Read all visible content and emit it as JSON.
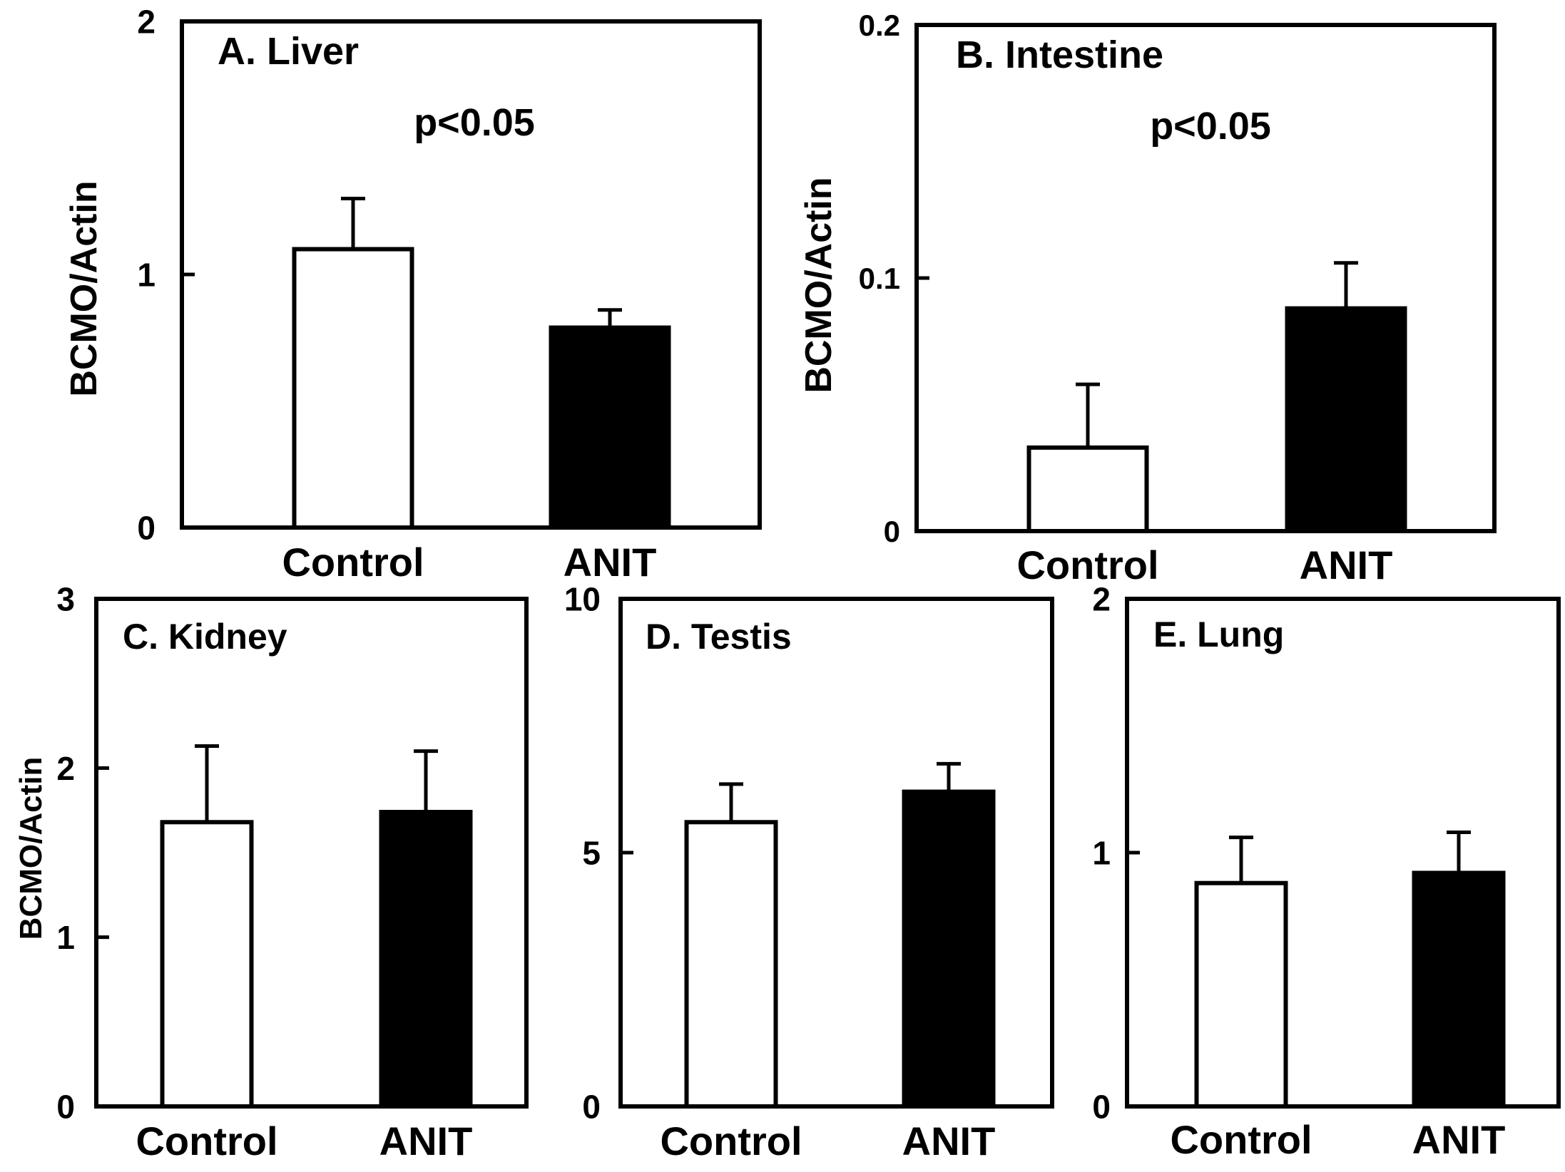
{
  "chart_data": [
    {
      "type": "bar",
      "panel": "A",
      "title": "A. Liver",
      "annotation": "p<0.05",
      "ylabel": "BCMO/Actin",
      "xlabel": "",
      "categories": [
        "Control",
        "ANIT"
      ],
      "values": [
        1.1,
        0.79
      ],
      "errors": [
        0.2,
        0.07
      ],
      "ylim": [
        0,
        2
      ],
      "yticks": [
        0,
        1,
        2
      ],
      "ytick_labels": [
        "0",
        "1",
        "2"
      ],
      "fills": [
        "#ffffff",
        "#000000"
      ]
    },
    {
      "type": "bar",
      "panel": "B",
      "title": "B. Intestine",
      "annotation": "p<0.05",
      "ylabel": "BCMO/Actin",
      "xlabel": "",
      "categories": [
        "Control",
        "ANIT"
      ],
      "values": [
        0.033,
        0.088
      ],
      "errors": [
        0.025,
        0.018
      ],
      "ylim": [
        0,
        0.2
      ],
      "yticks": [
        0,
        0.1,
        0.2
      ],
      "ytick_labels": [
        "0",
        "0.1",
        "0.2"
      ],
      "fills": [
        "#ffffff",
        "#000000"
      ]
    },
    {
      "type": "bar",
      "panel": "C",
      "title": "C. Kidney",
      "annotation": "",
      "ylabel": "BCMO/Actin",
      "xlabel": "",
      "categories": [
        "Control",
        "ANIT"
      ],
      "values": [
        1.68,
        1.74
      ],
      "errors": [
        0.45,
        0.36
      ],
      "ylim": [
        0,
        3
      ],
      "yticks": [
        0,
        1,
        2,
        3
      ],
      "ytick_labels": [
        "0",
        "1",
        "2",
        "3"
      ],
      "fills": [
        "#ffffff",
        "#000000"
      ]
    },
    {
      "type": "bar",
      "panel": "D",
      "title": "D. Testis",
      "annotation": "",
      "ylabel": "",
      "xlabel": "",
      "categories": [
        "Control",
        "ANIT"
      ],
      "values": [
        5.6,
        6.2
      ],
      "errors": [
        0.75,
        0.55
      ],
      "ylim": [
        0,
        10
      ],
      "yticks": [
        0,
        5,
        10
      ],
      "ytick_labels": [
        "0",
        "5",
        "10"
      ],
      "fills": [
        "#ffffff",
        "#000000"
      ]
    },
    {
      "type": "bar",
      "panel": "E",
      "title": "E. Lung",
      "annotation": "",
      "ylabel": "",
      "xlabel": "",
      "categories": [
        "Control",
        "ANIT"
      ],
      "values": [
        0.88,
        0.92
      ],
      "errors": [
        0.18,
        0.16
      ],
      "ylim": [
        0,
        2
      ],
      "yticks": [
        0,
        1,
        2
      ],
      "ytick_labels": [
        "0",
        "1",
        "2"
      ],
      "fills": [
        "#ffffff",
        "#000000"
      ]
    }
  ]
}
